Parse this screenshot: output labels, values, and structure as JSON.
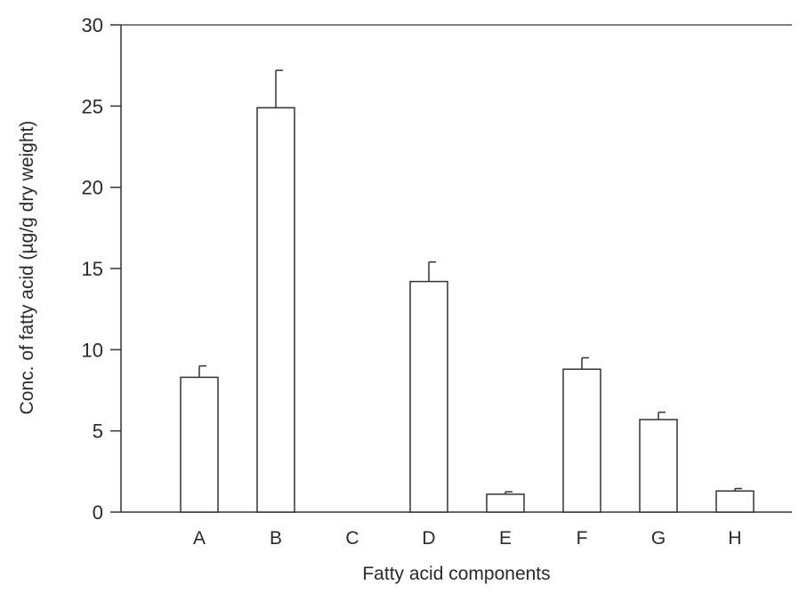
{
  "chart_data": {
    "type": "bar",
    "title": "",
    "xlabel": "Fatty acid components",
    "ylabel": "Conc. of fatty acid (µg/g dry weight)",
    "ylim": [
      0,
      30
    ],
    "yticks": [
      0,
      5,
      10,
      15,
      20,
      25,
      30
    ],
    "grid": false,
    "categories": [
      "A",
      "B",
      "C",
      "D",
      "E",
      "F",
      "G",
      "H"
    ],
    "values": [
      8.3,
      24.9,
      0,
      14.2,
      1.1,
      8.8,
      5.7,
      1.3
    ],
    "errors": [
      0.7,
      2.3,
      0,
      1.2,
      0.15,
      0.7,
      0.45,
      0.15
    ]
  }
}
